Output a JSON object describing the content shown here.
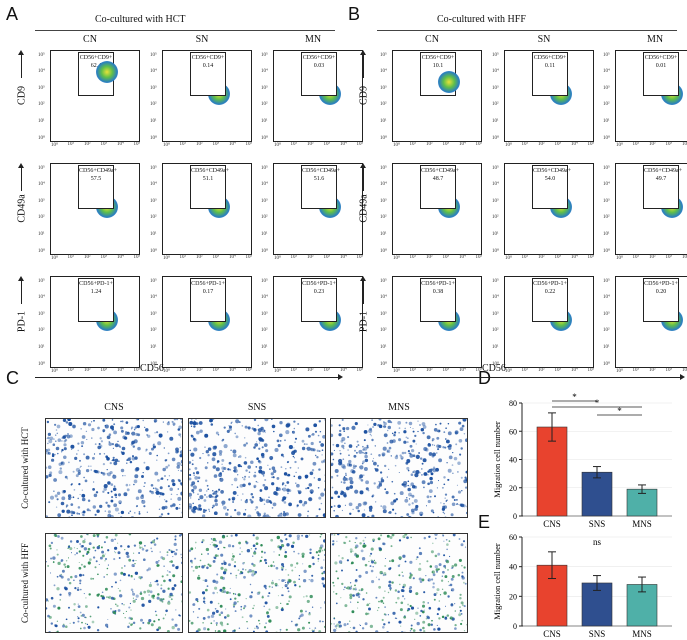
{
  "panels": {
    "a": "A",
    "b": "B",
    "c": "C",
    "d": "D",
    "e": "E"
  },
  "flow_a": {
    "header": "Co-cultured with HCT",
    "columns": [
      "CN",
      "SN",
      "MN"
    ],
    "xlabel": "CD56",
    "rows": [
      {
        "marker": "CD9",
        "gates": [
          {
            "label": "CD56+CD9+",
            "value": "62.4"
          },
          {
            "label": "CD56+CD9+",
            "value": "0.14"
          },
          {
            "label": "CD56+CD9+",
            "value": "0.03"
          }
        ]
      },
      {
        "marker": "CD49a",
        "gates": [
          {
            "label": "CD56+CD49a+",
            "value": "57.5"
          },
          {
            "label": "CD56+CD49a+",
            "value": "51.1"
          },
          {
            "label": "CD56+CD49a+",
            "value": "51.6"
          }
        ]
      },
      {
        "marker": "PD-1",
        "gates": [
          {
            "label": "CD56+PD-1+",
            "value": "1.24"
          },
          {
            "label": "CD56+PD-1+",
            "value": "0.17"
          },
          {
            "label": "CD56+PD-1+",
            "value": "0.23"
          }
        ]
      }
    ]
  },
  "flow_b": {
    "header": "Co-cultured with HFF",
    "columns": [
      "CN",
      "SN",
      "MN"
    ],
    "xlabel": "CD56",
    "rows": [
      {
        "marker": "CD9",
        "gates": [
          {
            "label": "CD56+CD9+",
            "value": "10.1"
          },
          {
            "label": "CD56+CD9+",
            "value": "0.11"
          },
          {
            "label": "CD56+CD9+",
            "value": "0.01"
          }
        ]
      },
      {
        "marker": "CD49a",
        "gates": [
          {
            "label": "CD56+CD49a+",
            "value": "48.7"
          },
          {
            "label": "CD56+CD49a+",
            "value": "54.0"
          },
          {
            "label": "CD56+CD49a+",
            "value": "49.7"
          }
        ]
      },
      {
        "marker": "PD-1",
        "gates": [
          {
            "label": "CD56+PD-1+",
            "value": "0.38"
          },
          {
            "label": "CD56+PD-1+",
            "value": "0.22"
          },
          {
            "label": "CD56+PD-1+",
            "value": "0.20"
          }
        ]
      }
    ]
  },
  "axis_ticks": [
    "10⁰",
    "10¹",
    "10²",
    "10³",
    "10⁴",
    "10⁵"
  ],
  "micro": {
    "columns": [
      "CNS",
      "SNS",
      "MNS"
    ],
    "rows": [
      "Co-cultured with HCT",
      "Co-cultured with HFF"
    ]
  },
  "colors": {
    "cns": "#e8432e",
    "sns": "#2f4f8f",
    "mns": "#4fb0a8",
    "stain": "#1a4fa0",
    "stain2": "#2e8b57"
  },
  "chart_data": [
    {
      "type": "bar",
      "panel": "D",
      "categories": [
        "CNS",
        "SNS",
        "MNS"
      ],
      "values": [
        63,
        31,
        19
      ],
      "errors": [
        10,
        4,
        3
      ],
      "ylabel": "Migration cell number",
      "ylim": [
        0,
        80
      ],
      "yticks": [
        0,
        20,
        40,
        60,
        80
      ],
      "annotations": [
        {
          "pair": [
            "CNS",
            "SNS"
          ],
          "text": "*"
        },
        {
          "pair": [
            "CNS",
            "MNS"
          ],
          "text": "*"
        },
        {
          "pair": [
            "SNS",
            "MNS"
          ],
          "text": "*"
        }
      ]
    },
    {
      "type": "bar",
      "panel": "E",
      "categories": [
        "CNS",
        "SNS",
        "MNS"
      ],
      "values": [
        41,
        29,
        28
      ],
      "errors": [
        9,
        5,
        5
      ],
      "ylabel": "Migration cell number",
      "ylim": [
        0,
        60
      ],
      "yticks": [
        0,
        20,
        40,
        60
      ],
      "annotations": [
        {
          "pair": [
            "CNS",
            "MNS"
          ],
          "text": "ns"
        }
      ]
    }
  ]
}
